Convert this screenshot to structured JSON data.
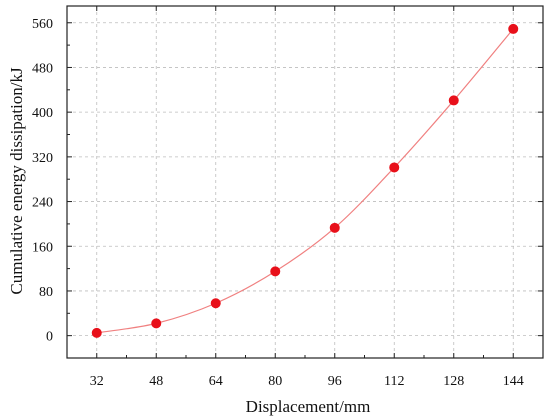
{
  "chart_data": {
    "type": "scatter",
    "xlabel": "Displacement/mm",
    "ylabel": "Cumulative energy dissipation/kJ",
    "x_ticks": [
      "32",
      "48",
      "64",
      "80",
      "96",
      "112",
      "128",
      "144"
    ],
    "y_ticks": [
      "0",
      "80",
      "160",
      "240",
      "320",
      "400",
      "480",
      "560"
    ],
    "xlim": [
      24,
      152
    ],
    "ylim": [
      -40,
      590
    ],
    "grid": true,
    "series": [
      {
        "color": "#e8101a",
        "line_color": "#f08080",
        "x": [
          32,
          48,
          64,
          80,
          96,
          112,
          128,
          144
        ],
        "y": [
          5,
          22,
          58,
          115,
          193,
          301,
          421,
          549
        ]
      }
    ]
  }
}
